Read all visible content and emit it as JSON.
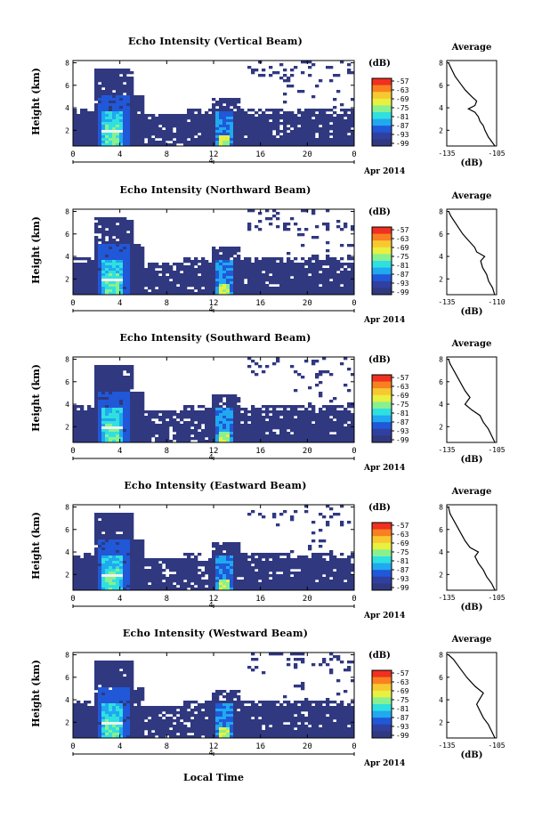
{
  "figure": {
    "x_label": "Local Time",
    "date_label": "Apr 2014",
    "colorbar_unit": "(dB)",
    "colorbar_ticks": [
      "-57",
      "-63",
      "-69",
      "-75",
      "-81",
      "-87",
      "-93",
      "-99"
    ],
    "colorbar_colors": [
      "#f03020",
      "#f88020",
      "#f8c830",
      "#e8f040",
      "#88f090",
      "#30e0e0",
      "#20a8f0",
      "#2058d8",
      "#3040a0",
      "#303880"
    ],
    "profile_title": "Average",
    "profile_unit": "(dB)"
  },
  "chart_data": [
    {
      "type": "heatmap",
      "title": "Echo Intensity (Vertical Beam)",
      "ylabel": "Height (km)",
      "x_ticks": [
        "0",
        "4",
        "8",
        "12",
        "16",
        "20",
        "0"
      ],
      "day_ticks": [
        "4"
      ],
      "y_ticks": [
        "2",
        "4",
        "6",
        "8"
      ],
      "xlim": [
        0,
        24
      ],
      "ylim": [
        0.6,
        8.2
      ],
      "profile": {
        "xlim": [
          -135,
          -105
        ],
        "x_ticks": [
          "-135",
          "-105"
        ],
        "y_ticks": [
          "2",
          "4",
          "6",
          "8"
        ],
        "points": [
          [
            -106,
            0.6
          ],
          [
            -108,
            1.0
          ],
          [
            -110,
            1.4
          ],
          [
            -112,
            2.0
          ],
          [
            -113,
            2.4
          ],
          [
            -115,
            2.8
          ],
          [
            -116,
            3.2
          ],
          [
            -118,
            3.6
          ],
          [
            -122,
            3.9
          ],
          [
            -118,
            4.2
          ],
          [
            -117,
            4.6
          ],
          [
            -120,
            5.0
          ],
          [
            -124,
            5.6
          ],
          [
            -127,
            6.2
          ],
          [
            -130,
            6.8
          ],
          [
            -132,
            7.4
          ],
          [
            -134,
            8.0
          ]
        ]
      }
    },
    {
      "type": "heatmap",
      "title": "Echo Intensity (Northward Beam)",
      "ylabel": "Height (km)",
      "x_ticks": [
        "0",
        "4",
        "8",
        "12",
        "16",
        "20",
        "0"
      ],
      "day_ticks": [
        "4"
      ],
      "y_ticks": [
        "2",
        "4",
        "6",
        "8"
      ],
      "xlim": [
        0,
        24
      ],
      "ylim": [
        0.6,
        8.2
      ],
      "profile": {
        "xlim": [
          -135,
          -110
        ],
        "x_ticks": [
          "-135",
          "-110"
        ],
        "y_ticks": [
          "2",
          "4",
          "6",
          "8"
        ],
        "points": [
          [
            -111,
            0.6
          ],
          [
            -112,
            1.2
          ],
          [
            -114,
            1.8
          ],
          [
            -115,
            2.4
          ],
          [
            -117,
            3.0
          ],
          [
            -118,
            3.6
          ],
          [
            -116,
            4.0
          ],
          [
            -120,
            4.4
          ],
          [
            -121,
            4.8
          ],
          [
            -124,
            5.4
          ],
          [
            -127,
            6.0
          ],
          [
            -130,
            6.8
          ],
          [
            -133,
            7.6
          ],
          [
            -134,
            8.0
          ]
        ]
      }
    },
    {
      "type": "heatmap",
      "title": "Echo Intensity (Southward Beam)",
      "ylabel": "Height (km)",
      "x_ticks": [
        "0",
        "4",
        "8",
        "12",
        "16",
        "20",
        "0"
      ],
      "day_ticks": [
        "4"
      ],
      "y_ticks": [
        "2",
        "4",
        "6",
        "8"
      ],
      "xlim": [
        0,
        24
      ],
      "ylim": [
        0.6,
        8.2
      ],
      "profile": {
        "xlim": [
          -135,
          -105
        ],
        "x_ticks": [
          "-135",
          "-105"
        ],
        "y_ticks": [
          "2",
          "4",
          "6",
          "8"
        ],
        "points": [
          [
            -106,
            0.6
          ],
          [
            -108,
            1.2
          ],
          [
            -110,
            1.8
          ],
          [
            -113,
            2.4
          ],
          [
            -115,
            3.0
          ],
          [
            -120,
            3.5
          ],
          [
            -124,
            4.0
          ],
          [
            -121,
            4.6
          ],
          [
            -124,
            5.2
          ],
          [
            -127,
            6.0
          ],
          [
            -130,
            6.8
          ],
          [
            -133,
            7.6
          ],
          [
            -134,
            8.0
          ]
        ]
      }
    },
    {
      "type": "heatmap",
      "title": "Echo Intensity (Eastward Beam)",
      "ylabel": "Height (km)",
      "x_ticks": [
        "0",
        "4",
        "8",
        "12",
        "16",
        "20",
        "0"
      ],
      "day_ticks": [
        "4"
      ],
      "y_ticks": [
        "2",
        "4",
        "6",
        "8"
      ],
      "xlim": [
        0,
        24
      ],
      "ylim": [
        0.6,
        8.2
      ],
      "profile": {
        "xlim": [
          -135,
          -105
        ],
        "x_ticks": [
          "-135",
          "-105"
        ],
        "y_ticks": [
          "2",
          "4",
          "6",
          "8"
        ],
        "points": [
          [
            -106,
            0.6
          ],
          [
            -108,
            1.2
          ],
          [
            -111,
            1.8
          ],
          [
            -113,
            2.4
          ],
          [
            -116,
            3.0
          ],
          [
            -118,
            3.6
          ],
          [
            -116,
            4.0
          ],
          [
            -121,
            4.4
          ],
          [
            -124,
            5.0
          ],
          [
            -127,
            5.8
          ],
          [
            -130,
            6.6
          ],
          [
            -133,
            7.4
          ],
          [
            -134,
            8.0
          ]
        ]
      }
    },
    {
      "type": "heatmap",
      "title": "Echo Intensity (Westward Beam)",
      "ylabel": "Height (km)",
      "x_ticks": [
        "0",
        "4",
        "8",
        "12",
        "16",
        "20",
        "0"
      ],
      "day_ticks": [
        "4"
      ],
      "y_ticks": [
        "2",
        "4",
        "6",
        "8"
      ],
      "xlim": [
        0,
        24
      ],
      "ylim": [
        0.6,
        8.2
      ],
      "profile": {
        "xlim": [
          -135,
          -105
        ],
        "x_ticks": [
          "-135",
          "-105"
        ],
        "y_ticks": [
          "2",
          "4",
          "6",
          "8"
        ],
        "points": [
          [
            -106,
            0.6
          ],
          [
            -108,
            1.2
          ],
          [
            -110,
            1.8
          ],
          [
            -113,
            2.4
          ],
          [
            -115,
            3.0
          ],
          [
            -117,
            3.6
          ],
          [
            -115,
            4.1
          ],
          [
            -113,
            4.6
          ],
          [
            -118,
            5.2
          ],
          [
            -123,
            6.0
          ],
          [
            -127,
            6.8
          ],
          [
            -131,
            7.6
          ],
          [
            -134,
            8.0
          ]
        ]
      }
    }
  ]
}
